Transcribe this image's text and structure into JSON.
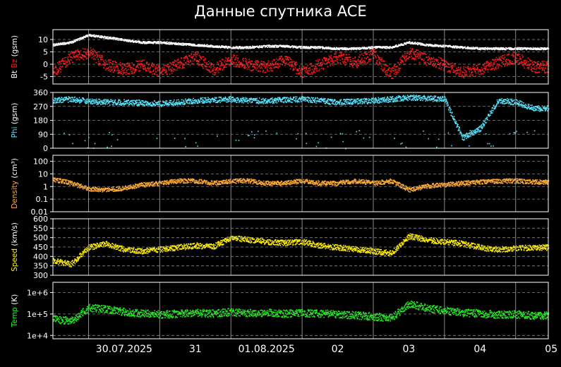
{
  "title": "Данные спутника ACE",
  "x_ticks": [
    "30.07.2025",
    "31",
    "01.08.2025",
    "02",
    "03",
    "04",
    "05"
  ],
  "colors": {
    "bt": "#ffffff",
    "bz": "#ff1a1a",
    "phi": "#55e6ff",
    "density": "#ffaa33",
    "speed": "#ffee00",
    "temp": "#22ee22",
    "grid": "#888888",
    "frame": "#ffffff"
  },
  "chart_data": [
    {
      "type": "scatter",
      "ylabel_parts": [
        "Bt",
        "Bz",
        "(gsm)"
      ],
      "ylim": [
        -8,
        14
      ],
      "y_ticks": [
        10,
        5,
        0,
        -5
      ],
      "x": [
        "2025-07-29 12:00",
        "2025-07-29 18:00",
        "2025-07-30 00:00",
        "2025-07-30 06:00",
        "2025-07-30 12:00",
        "2025-07-30 18:00",
        "2025-07-31 00:00",
        "2025-07-31 06:00",
        "2025-07-31 12:00",
        "2025-07-31 18:00",
        "2025-08-01 00:00",
        "2025-08-01 06:00",
        "2025-08-01 12:00",
        "2025-08-01 18:00",
        "2025-08-02 00:00",
        "2025-08-02 06:00",
        "2025-08-02 12:00",
        "2025-08-02 18:00",
        "2025-08-03 00:00",
        "2025-08-03 06:00",
        "2025-08-03 12:00",
        "2025-08-03 18:00",
        "2025-08-04 00:00",
        "2025-08-04 06:00",
        "2025-08-04 12:00",
        "2025-08-04 18:00",
        "2025-08-05 00:00",
        "2025-08-05 06:00"
      ],
      "series": [
        {
          "name": "Bt",
          "color_key": "bt",
          "values": [
            8,
            9,
            12,
            11,
            10,
            9,
            9,
            8.5,
            8,
            7.5,
            7,
            7,
            7.5,
            7.5,
            7,
            7,
            6.5,
            6.5,
            7,
            7,
            9,
            8,
            7.5,
            7,
            6.5,
            6.5,
            6.5,
            6.5
          ]
        },
        {
          "name": "Bz",
          "color_key": "bz",
          "values": [
            -3,
            3,
            5,
            0,
            -2,
            0,
            -3,
            0,
            3,
            -2,
            2,
            0,
            -1,
            2,
            -3,
            0,
            3,
            1,
            4,
            -4,
            5,
            2,
            0,
            -3,
            -2,
            1,
            3,
            -1
          ]
        }
      ]
    },
    {
      "type": "scatter",
      "ylabel_parts": [
        "Phi",
        "(gsm)"
      ],
      "ylim": [
        0,
        360
      ],
      "y_ticks": [
        360,
        270,
        180,
        90,
        0
      ],
      "x": [
        "2025-07-29 12:00",
        "2025-07-29 18:00",
        "2025-07-30 00:00",
        "2025-07-30 06:00",
        "2025-07-30 12:00",
        "2025-07-30 18:00",
        "2025-07-31 00:00",
        "2025-07-31 06:00",
        "2025-07-31 12:00",
        "2025-07-31 18:00",
        "2025-08-01 00:00",
        "2025-08-01 06:00",
        "2025-08-01 12:00",
        "2025-08-01 18:00",
        "2025-08-02 00:00",
        "2025-08-02 06:00",
        "2025-08-02 12:00",
        "2025-08-02 18:00",
        "2025-08-03 00:00",
        "2025-08-03 06:00",
        "2025-08-03 12:00",
        "2025-08-03 18:00",
        "2025-08-04 00:00",
        "2025-08-04 06:00",
        "2025-08-04 12:00",
        "2025-08-04 18:00",
        "2025-08-05 00:00",
        "2025-08-05 06:00"
      ],
      "series": [
        {
          "name": "Phi",
          "color_key": "phi",
          "values": [
            310,
            320,
            305,
            300,
            300,
            295,
            290,
            300,
            310,
            315,
            320,
            310,
            310,
            315,
            320,
            310,
            300,
            305,
            310,
            320,
            330,
            325,
            320,
            70,
            130,
            310,
            300,
            260
          ]
        }
      ]
    },
    {
      "type": "scatter",
      "ylabel_parts": [
        "Density",
        "(cm³)"
      ],
      "scale": "log",
      "ylim": [
        0.01,
        300
      ],
      "y_ticks": [
        100,
        10,
        1,
        0.1,
        0.01
      ],
      "y_tick_labels": [
        "100",
        "10",
        "1",
        "0.1",
        "0.01"
      ],
      "x": [
        "2025-07-29 12:00",
        "2025-07-29 18:00",
        "2025-07-30 00:00",
        "2025-07-30 06:00",
        "2025-07-30 12:00",
        "2025-07-30 18:00",
        "2025-07-31 00:00",
        "2025-07-31 06:00",
        "2025-07-31 12:00",
        "2025-07-31 18:00",
        "2025-08-01 00:00",
        "2025-08-01 06:00",
        "2025-08-01 12:00",
        "2025-08-01 18:00",
        "2025-08-02 00:00",
        "2025-08-02 06:00",
        "2025-08-02 12:00",
        "2025-08-02 18:00",
        "2025-08-03 00:00",
        "2025-08-03 06:00",
        "2025-08-03 12:00",
        "2025-08-03 18:00",
        "2025-08-04 00:00",
        "2025-08-04 06:00",
        "2025-08-04 12:00",
        "2025-08-04 18:00",
        "2025-08-05 00:00",
        "2025-08-05 06:00"
      ],
      "series": [
        {
          "name": "Density",
          "color_key": "density",
          "values": [
            4,
            2,
            0.7,
            0.6,
            0.8,
            1.5,
            2,
            3,
            3,
            2,
            3,
            3,
            2,
            2,
            3,
            2,
            2,
            3,
            2,
            3,
            0.6,
            1.2,
            1.5,
            2,
            2.5,
            3,
            3,
            2.5
          ]
        }
      ]
    },
    {
      "type": "scatter",
      "ylabel_parts": [
        "Speed",
        "(km/s)"
      ],
      "ylim": [
        300,
        600
      ],
      "y_ticks": [
        600,
        550,
        500,
        450,
        400,
        350,
        300
      ],
      "x": [
        "2025-07-29 12:00",
        "2025-07-29 18:00",
        "2025-07-30 00:00",
        "2025-07-30 06:00",
        "2025-07-30 12:00",
        "2025-07-30 18:00",
        "2025-07-31 00:00",
        "2025-07-31 06:00",
        "2025-07-31 12:00",
        "2025-07-31 18:00",
        "2025-08-01 00:00",
        "2025-08-01 06:00",
        "2025-08-01 12:00",
        "2025-08-01 18:00",
        "2025-08-02 00:00",
        "2025-08-02 06:00",
        "2025-08-02 12:00",
        "2025-08-02 18:00",
        "2025-08-03 00:00",
        "2025-08-03 06:00",
        "2025-08-03 12:00",
        "2025-08-03 18:00",
        "2025-08-04 00:00",
        "2025-08-04 06:00",
        "2025-08-04 12:00",
        "2025-08-04 18:00",
        "2025-08-05 00:00",
        "2025-08-05 06:00"
      ],
      "series": [
        {
          "name": "Speed",
          "color_key": "speed",
          "values": [
            380,
            360,
            450,
            470,
            440,
            430,
            440,
            450,
            460,
            455,
            500,
            490,
            480,
            475,
            480,
            460,
            450,
            440,
            430,
            420,
            510,
            490,
            480,
            470,
            450,
            440,
            445,
            450
          ]
        }
      ]
    },
    {
      "type": "scatter",
      "ylabel_parts": [
        "Temp",
        "(K)"
      ],
      "scale": "log",
      "ylim": [
        7000,
        3000000
      ],
      "y_ticks": [
        1000000,
        100000,
        10000
      ],
      "y_tick_labels": [
        "1e+6",
        "1e+5",
        "1e+4"
      ],
      "x": [
        "2025-07-29 12:00",
        "2025-07-29 18:00",
        "2025-07-30 00:00",
        "2025-07-30 06:00",
        "2025-07-30 12:00",
        "2025-07-30 18:00",
        "2025-07-31 00:00",
        "2025-07-31 06:00",
        "2025-07-31 12:00",
        "2025-07-31 18:00",
        "2025-08-01 00:00",
        "2025-08-01 06:00",
        "2025-08-01 12:00",
        "2025-08-01 18:00",
        "2025-08-02 00:00",
        "2025-08-02 06:00",
        "2025-08-02 12:00",
        "2025-08-02 18:00",
        "2025-08-03 00:00",
        "2025-08-03 06:00",
        "2025-08-03 12:00",
        "2025-08-03 18:00",
        "2025-08-04 00:00",
        "2025-08-04 06:00",
        "2025-08-04 12:00",
        "2025-08-04 18:00",
        "2025-08-05 00:00",
        "2025-08-05 06:00"
      ],
      "series": [
        {
          "name": "Temp",
          "color_key": "temp",
          "values": [
            60000,
            50000,
            200000,
            180000,
            130000,
            110000,
            100000,
            110000,
            120000,
            110000,
            130000,
            120000,
            120000,
            110000,
            120000,
            110000,
            100000,
            90000,
            80000,
            70000,
            300000,
            200000,
            150000,
            120000,
            110000,
            100000,
            100000,
            90000
          ]
        }
      ]
    }
  ]
}
